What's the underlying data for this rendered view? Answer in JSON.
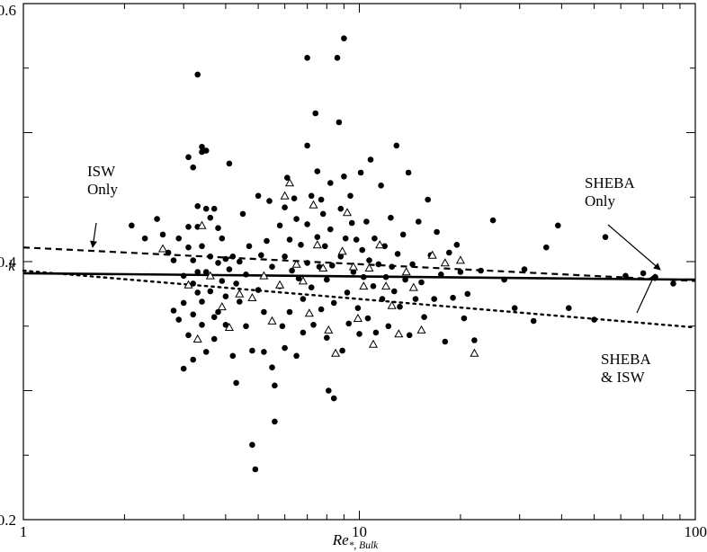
{
  "chart_data": {
    "type": "scatter",
    "title": "",
    "xlabel_main": "Re",
    "xlabel_sub": "*, Bulk",
    "ylabel": "k",
    "x_scale": "log",
    "xlim": [
      1,
      100
    ],
    "ylim": [
      0.2,
      0.6
    ],
    "x_tick_labels": [
      {
        "value": 1,
        "label": "1"
      },
      {
        "value": 10,
        "label": "10"
      },
      {
        "value": 100,
        "label": "100"
      }
    ],
    "y_tick_labels": [
      {
        "value": 0.2,
        "label": "0.2"
      },
      {
        "value": 0.4,
        "label": "0.4"
      },
      {
        "value": 0.6,
        "label": "0.6"
      }
    ],
    "grid": false,
    "series": [
      {
        "marker": "filled-circle",
        "points": [
          [
            2.1,
            0.428
          ],
          [
            2.3,
            0.418
          ],
          [
            2.5,
            0.433
          ],
          [
            2.6,
            0.421
          ],
          [
            2.7,
            0.407
          ],
          [
            2.8,
            0.362
          ],
          [
            2.8,
            0.401
          ],
          [
            2.9,
            0.418
          ],
          [
            2.9,
            0.355
          ],
          [
            3.0,
            0.317
          ],
          [
            3.0,
            0.389
          ],
          [
            3.0,
            0.368
          ],
          [
            3.1,
            0.481
          ],
          [
            3.1,
            0.411
          ],
          [
            3.1,
            0.343
          ],
          [
            3.1,
            0.427
          ],
          [
            3.2,
            0.473
          ],
          [
            3.2,
            0.401
          ],
          [
            3.2,
            0.383
          ],
          [
            3.2,
            0.359
          ],
          [
            3.2,
            0.324
          ],
          [
            3.3,
            0.443
          ],
          [
            3.3,
            0.545
          ],
          [
            3.3,
            0.427
          ],
          [
            3.3,
            0.392
          ],
          [
            3.3,
            0.376
          ],
          [
            3.4,
            0.485
          ],
          [
            3.4,
            0.489
          ],
          [
            3.4,
            0.412
          ],
          [
            3.4,
            0.369
          ],
          [
            3.4,
            0.351
          ],
          [
            3.5,
            0.486
          ],
          [
            3.5,
            0.441
          ],
          [
            3.5,
            0.392
          ],
          [
            3.5,
            0.33
          ],
          [
            3.6,
            0.434
          ],
          [
            3.6,
            0.404
          ],
          [
            3.6,
            0.377
          ],
          [
            3.7,
            0.441
          ],
          [
            3.7,
            0.357
          ],
          [
            3.7,
            0.34
          ],
          [
            3.8,
            0.426
          ],
          [
            3.8,
            0.399
          ],
          [
            3.8,
            0.361
          ],
          [
            3.9,
            0.418
          ],
          [
            3.9,
            0.385
          ],
          [
            4.0,
            0.402
          ],
          [
            4.0,
            0.373
          ],
          [
            4.0,
            0.351
          ],
          [
            4.1,
            0.476
          ],
          [
            4.1,
            0.394
          ],
          [
            4.2,
            0.327
          ],
          [
            4.2,
            0.404
          ],
          [
            4.3,
            0.306
          ],
          [
            4.3,
            0.383
          ],
          [
            4.4,
            0.4
          ],
          [
            4.4,
            0.369
          ],
          [
            4.5,
            0.437
          ],
          [
            4.6,
            0.39
          ],
          [
            4.6,
            0.35
          ],
          [
            4.7,
            0.412
          ],
          [
            4.8,
            0.331
          ],
          [
            4.8,
            0.258
          ],
          [
            4.9,
            0.239
          ],
          [
            5.0,
            0.451
          ],
          [
            5.0,
            0.378
          ],
          [
            5.1,
            0.405
          ],
          [
            5.2,
            0.361
          ],
          [
            5.2,
            0.33
          ],
          [
            5.3,
            0.416
          ],
          [
            5.4,
            0.447
          ],
          [
            5.5,
            0.396
          ],
          [
            5.5,
            0.318
          ],
          [
            5.6,
            0.304
          ],
          [
            5.6,
            0.276
          ],
          [
            5.8,
            0.428
          ],
          [
            5.8,
            0.381
          ],
          [
            5.9,
            0.35
          ],
          [
            6.0,
            0.442
          ],
          [
            6.0,
            0.404
          ],
          [
            6.0,
            0.333
          ],
          [
            6.1,
            0.465
          ],
          [
            6.2,
            0.417
          ],
          [
            6.2,
            0.361
          ],
          [
            6.3,
            0.393
          ],
          [
            6.4,
            0.449
          ],
          [
            6.5,
            0.433
          ],
          [
            6.5,
            0.327
          ],
          [
            6.6,
            0.387
          ],
          [
            6.7,
            0.413
          ],
          [
            6.8,
            0.371
          ],
          [
            6.8,
            0.345
          ],
          [
            7.0,
            0.558
          ],
          [
            7.0,
            0.49
          ],
          [
            7.0,
            0.429
          ],
          [
            7.0,
            0.399
          ],
          [
            7.2,
            0.451
          ],
          [
            7.2,
            0.38
          ],
          [
            7.3,
            0.351
          ],
          [
            7.4,
            0.515
          ],
          [
            7.5,
            0.47
          ],
          [
            7.5,
            0.419
          ],
          [
            7.6,
            0.396
          ],
          [
            7.7,
            0.448
          ],
          [
            7.7,
            0.363
          ],
          [
            7.8,
            0.437
          ],
          [
            7.9,
            0.412
          ],
          [
            8.0,
            0.386
          ],
          [
            8.0,
            0.341
          ],
          [
            8.1,
            0.3
          ],
          [
            8.2,
            0.461
          ],
          [
            8.2,
            0.425
          ],
          [
            8.3,
            0.397
          ],
          [
            8.4,
            0.294
          ],
          [
            8.4,
            0.368
          ],
          [
            8.6,
            0.558
          ],
          [
            8.7,
            0.508
          ],
          [
            8.8,
            0.441
          ],
          [
            8.8,
            0.404
          ],
          [
            8.9,
            0.331
          ],
          [
            9.0,
            0.573
          ],
          [
            9.0,
            0.466
          ],
          [
            9.1,
            0.418
          ],
          [
            9.2,
            0.376
          ],
          [
            9.3,
            0.352
          ],
          [
            9.4,
            0.451
          ],
          [
            9.5,
            0.43
          ],
          [
            9.6,
            0.392
          ],
          [
            9.8,
            0.417
          ],
          [
            9.9,
            0.364
          ],
          [
            10.0,
            0.344
          ],
          [
            10.1,
            0.469
          ],
          [
            10.2,
            0.409
          ],
          [
            10.3,
            0.388
          ],
          [
            10.5,
            0.431
          ],
          [
            10.6,
            0.356
          ],
          [
            10.7,
            0.401
          ],
          [
            10.8,
            0.479
          ],
          [
            11.0,
            0.381
          ],
          [
            11.1,
            0.418
          ],
          [
            11.2,
            0.345
          ],
          [
            11.4,
            0.398
          ],
          [
            11.6,
            0.459
          ],
          [
            11.7,
            0.371
          ],
          [
            11.9,
            0.412
          ],
          [
            12.0,
            0.388
          ],
          [
            12.2,
            0.35
          ],
          [
            12.4,
            0.434
          ],
          [
            12.5,
            0.396
          ],
          [
            12.7,
            0.377
          ],
          [
            12.9,
            0.49
          ],
          [
            13.0,
            0.406
          ],
          [
            13.2,
            0.365
          ],
          [
            13.5,
            0.421
          ],
          [
            13.7,
            0.386
          ],
          [
            14.0,
            0.469
          ],
          [
            14.1,
            0.343
          ],
          [
            14.4,
            0.398
          ],
          [
            14.7,
            0.371
          ],
          [
            15.0,
            0.431
          ],
          [
            15.3,
            0.384
          ],
          [
            15.6,
            0.357
          ],
          [
            16.0,
            0.448
          ],
          [
            16.3,
            0.405
          ],
          [
            16.7,
            0.371
          ],
          [
            17.0,
            0.423
          ],
          [
            17.5,
            0.39
          ],
          [
            18.0,
            0.338
          ],
          [
            18.5,
            0.407
          ],
          [
            19.0,
            0.372
          ],
          [
            19.5,
            0.413
          ],
          [
            20.0,
            0.392
          ],
          [
            20.5,
            0.356
          ],
          [
            21.0,
            0.375
          ],
          [
            22.0,
            0.339
          ],
          [
            23.0,
            0.393
          ],
          [
            25.0,
            0.432
          ],
          [
            27.0,
            0.386
          ],
          [
            29.0,
            0.364
          ],
          [
            31.0,
            0.394
          ],
          [
            33.0,
            0.354
          ],
          [
            36.0,
            0.411
          ],
          [
            39.0,
            0.428
          ],
          [
            42.0,
            0.364
          ],
          [
            50.0,
            0.355
          ],
          [
            54.0,
            0.419
          ],
          [
            62.0,
            0.389
          ],
          [
            70.0,
            0.391
          ],
          [
            76.0,
            0.388
          ],
          [
            86.0,
            0.383
          ]
        ]
      },
      {
        "marker": "open-triangle",
        "points": [
          [
            2.6,
            0.41
          ],
          [
            3.1,
            0.382
          ],
          [
            3.3,
            0.34
          ],
          [
            3.4,
            0.428
          ],
          [
            3.6,
            0.389
          ],
          [
            3.9,
            0.365
          ],
          [
            4.1,
            0.349
          ],
          [
            4.4,
            0.375
          ],
          [
            4.8,
            0.372
          ],
          [
            5.2,
            0.389
          ],
          [
            5.5,
            0.354
          ],
          [
            5.8,
            0.382
          ],
          [
            6.0,
            0.451
          ],
          [
            6.2,
            0.461
          ],
          [
            6.5,
            0.398
          ],
          [
            6.8,
            0.385
          ],
          [
            7.1,
            0.36
          ],
          [
            7.3,
            0.444
          ],
          [
            7.5,
            0.413
          ],
          [
            7.8,
            0.395
          ],
          [
            8.1,
            0.347
          ],
          [
            8.5,
            0.329
          ],
          [
            8.9,
            0.408
          ],
          [
            9.2,
            0.438
          ],
          [
            9.6,
            0.396
          ],
          [
            9.9,
            0.356
          ],
          [
            10.3,
            0.381
          ],
          [
            10.7,
            0.395
          ],
          [
            11.0,
            0.336
          ],
          [
            11.5,
            0.413
          ],
          [
            12.0,
            0.381
          ],
          [
            12.5,
            0.366
          ],
          [
            13.1,
            0.344
          ],
          [
            13.8,
            0.392
          ],
          [
            14.5,
            0.38
          ],
          [
            15.3,
            0.347
          ],
          [
            16.5,
            0.405
          ],
          [
            18.0,
            0.399
          ],
          [
            20.0,
            0.401
          ],
          [
            22.0,
            0.329
          ]
        ]
      }
    ],
    "fit_lines": [
      {
        "style": "solid",
        "points": [
          [
            1,
            0.391
          ],
          [
            100,
            0.386
          ]
        ]
      },
      {
        "style": "dashed",
        "points": [
          [
            1,
            0.411
          ],
          [
            100,
            0.385
          ]
        ]
      },
      {
        "style": "dotted",
        "points": [
          [
            1,
            0.393
          ],
          [
            100,
            0.349
          ]
        ]
      }
    ],
    "annotations": [
      {
        "id": "isw",
        "lines": [
          "ISW",
          "Only"
        ]
      },
      {
        "id": "sheba",
        "lines": [
          "SHEBA",
          "Only"
        ]
      },
      {
        "id": "both",
        "lines": [
          "SHEBA",
          "& ISW"
        ]
      }
    ]
  }
}
